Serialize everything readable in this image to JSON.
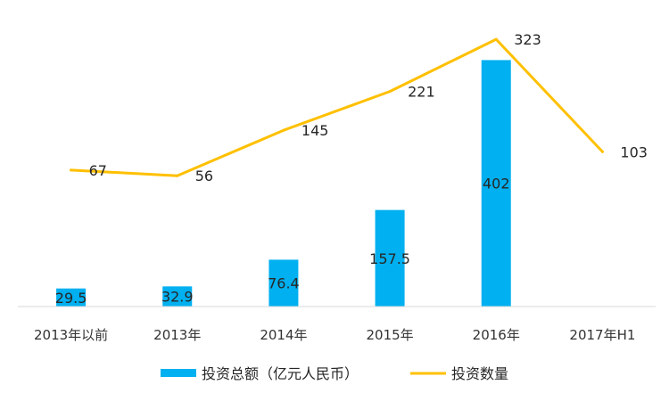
{
  "chart_data": {
    "type": "bar",
    "categories": [
      "2013年以前",
      "2013年",
      "2014年",
      "2015年",
      "2016年",
      "2017年H1"
    ],
    "series": [
      {
        "name": "投资总额（亿元人民币）",
        "type": "bar",
        "axis": "left",
        "color": "#00B0F0",
        "values": [
          29.5,
          32.9,
          76.4,
          157.5,
          402,
          null
        ]
      },
      {
        "name": "投资数量",
        "type": "line",
        "axis": "right",
        "color": "#FFC000",
        "values": [
          67,
          56,
          145,
          221,
          323,
          103
        ]
      }
    ],
    "title": "",
    "xlabel": "",
    "ylabel": "",
    "ylim_left": [
      0,
      500
    ],
    "ylim_right": [
      -200,
      400
    ],
    "grid": false,
    "legend_position": "bottom"
  }
}
